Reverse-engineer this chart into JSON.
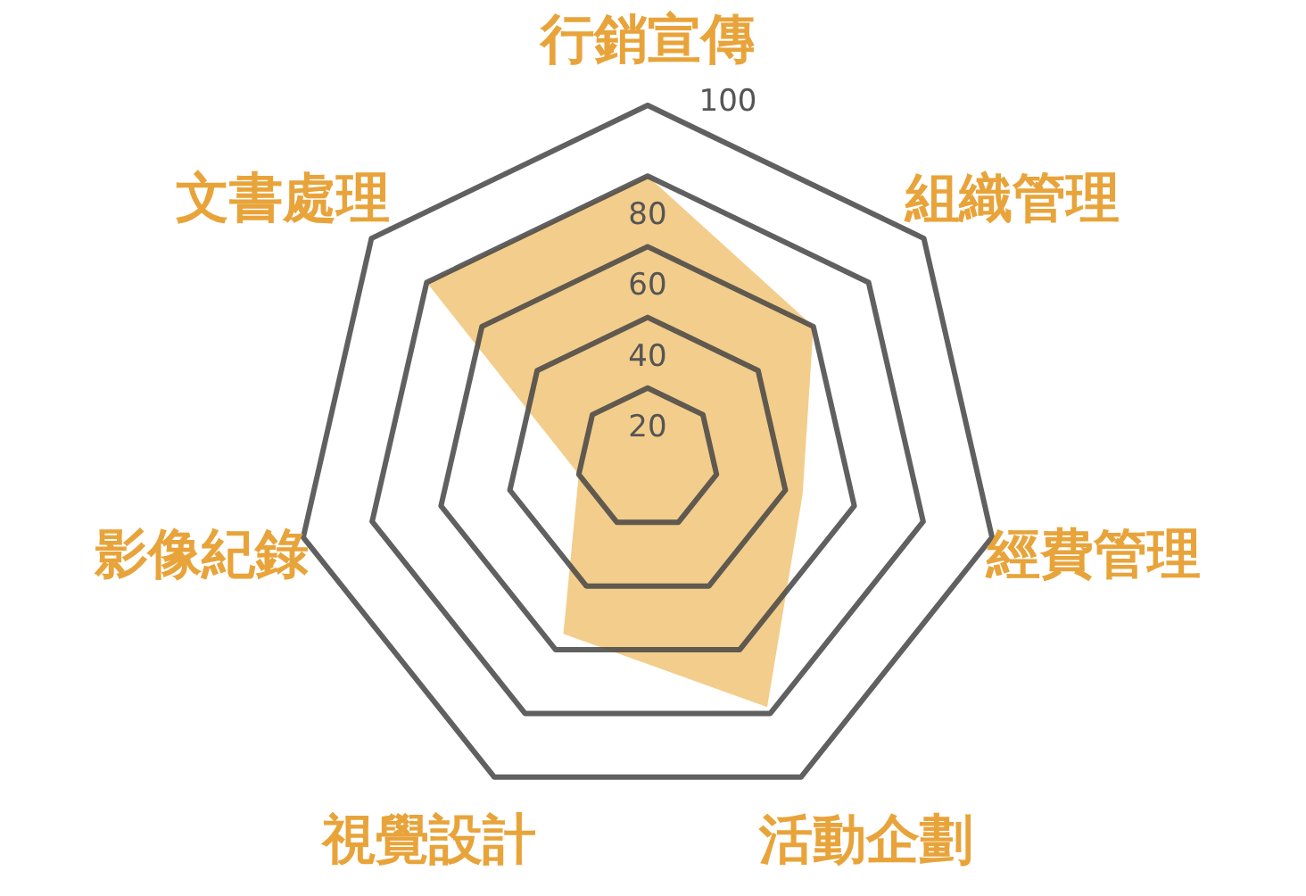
{
  "chart_data": {
    "type": "radar",
    "categories": [
      "行銷宣傳",
      "組織管理",
      "經費管理",
      "活動企劃",
      "視覺設計",
      "影像紀錄",
      "文書處理"
    ],
    "series": [
      {
        "color": "#f0c06e",
        "values": [
          80,
          60,
          45,
          78,
          55,
          20,
          80
        ]
      }
    ],
    "ylim": [
      0,
      100
    ],
    "yticks": [
      20,
      40,
      60,
      80,
      100
    ]
  }
}
